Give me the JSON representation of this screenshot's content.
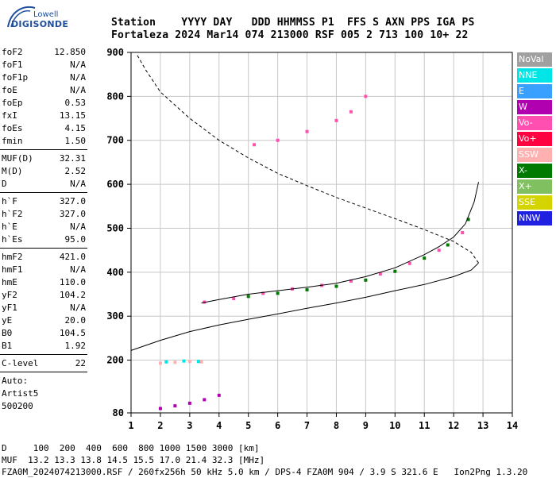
{
  "logo": {
    "maker": "Lowell",
    "brand": "DIGISONDE"
  },
  "header": {
    "line1": "Station    YYYY DAY   DDD HHMMSS P1  FFS S AXN PPS IGA PS",
    "line2": "Fortaleza 2024 Mar14 074 213000 RSF 005 2 713 100 10+ 22"
  },
  "parameters": [
    {
      "group": [
        {
          "name": "foF2",
          "value": "12.850"
        },
        {
          "name": "foF1",
          "value": "N/A"
        },
        {
          "name": "foF1p",
          "value": "N/A"
        },
        {
          "name": "foE",
          "value": "N/A"
        },
        {
          "name": "foEp",
          "value": "0.53"
        },
        {
          "name": "fxI",
          "value": "13.15"
        },
        {
          "name": "foEs",
          "value": "4.15"
        },
        {
          "name": "fmin",
          "value": "1.50"
        }
      ]
    },
    {
      "group": [
        {
          "name": "MUF(D)",
          "value": "32.31"
        },
        {
          "name": "M(D)",
          "value": "2.52"
        },
        {
          "name": "D",
          "value": "N/A"
        }
      ]
    },
    {
      "group": [
        {
          "name": "h`F",
          "value": "327.0"
        },
        {
          "name": "h`F2",
          "value": "327.0"
        },
        {
          "name": "h`E",
          "value": "N/A"
        },
        {
          "name": "h`Es",
          "value": "95.0"
        }
      ]
    },
    {
      "group": [
        {
          "name": "hmF2",
          "value": "421.0"
        },
        {
          "name": "hmF1",
          "value": "N/A"
        },
        {
          "name": "hmE",
          "value": "110.0"
        },
        {
          "name": "yF2",
          "value": "104.2"
        },
        {
          "name": "yF1",
          "value": "N/A"
        },
        {
          "name": "yE",
          "value": "20.0"
        },
        {
          "name": "B0",
          "value": "104.5"
        },
        {
          "name": "B1",
          "value": "1.92"
        }
      ]
    },
    {
      "group": [
        {
          "name": "C-level",
          "value": "22"
        }
      ]
    }
  ],
  "autoscale": {
    "line1": "Auto:",
    "line2": "Artist5",
    "line3": "500200"
  },
  "legend": [
    {
      "label": "NoVal",
      "color": "#a0a0a0"
    },
    {
      "label": "NNE",
      "color": "#00e5e5"
    },
    {
      "label": "E",
      "color": "#3aa0ff"
    },
    {
      "label": "W",
      "color": "#b000b0"
    },
    {
      "label": "Vo-",
      "color": "#ff4fb0"
    },
    {
      "label": "Vo+",
      "color": "#ff0040"
    },
    {
      "label": "SSW",
      "color": "#ffb0b0"
    },
    {
      "label": "X-",
      "color": "#007a00"
    },
    {
      "label": "X+",
      "color": "#80c060"
    },
    {
      "label": "SSE",
      "color": "#d4d400"
    },
    {
      "label": "NNW",
      "color": "#2020e0"
    }
  ],
  "footer": {
    "line1": "D     100  200  400  600  800 1000 1500 3000 [km]",
    "line2": "MUF  13.2 13.3 13.8 14.5 15.5 17.0 21.4 32.3 [MHz]",
    "line3": "FZA0M_2024074213000.RSF / 260fx256h 50 kHz 5.0 km / DPS-4 FZA0M 904 / 3.9 S 321.6 E   Ion2Png 1.3.20"
  },
  "chart_data": {
    "type": "scatter",
    "xlim": [
      1,
      14
    ],
    "ylim": [
      80,
      900
    ],
    "x_ticks": [
      "1",
      "2",
      "3",
      "4",
      "5",
      "6",
      "7",
      "8",
      "9",
      "10",
      "11",
      "12",
      "13",
      "14"
    ],
    "y_ticks": [
      "80",
      "200",
      "300",
      "400",
      "500",
      "600",
      "700",
      "800",
      "900"
    ],
    "grid": true,
    "electron_density_profile": {
      "x": [
        1.0,
        2.0,
        3.0,
        4.0,
        5.0,
        6.0,
        7.0,
        8.0,
        9.0,
        10.0,
        11.0,
        12.0,
        12.6,
        12.85
      ],
      "y": [
        222,
        245,
        265,
        280,
        293,
        305,
        318,
        330,
        343,
        358,
        372,
        390,
        405,
        421
      ]
    },
    "topside_profile": {
      "x": [
        12.85,
        12.6,
        12.0,
        11.0,
        10.0,
        9.0,
        8.0,
        7.0,
        6.0,
        5.0,
        4.0,
        3.0,
        2.0,
        1.5,
        1.2
      ],
      "y": [
        421,
        445,
        470,
        497,
        522,
        546,
        570,
        597,
        625,
        660,
        700,
        750,
        810,
        860,
        895
      ]
    },
    "virtual_height_trace": {
      "x": [
        3.4,
        4.0,
        5.0,
        6.0,
        7.0,
        8.0,
        9.0,
        10.0,
        11.0,
        11.5,
        12.0,
        12.4,
        12.7,
        12.85
      ],
      "y": [
        330,
        338,
        350,
        358,
        366,
        375,
        390,
        410,
        440,
        458,
        480,
        510,
        560,
        605
      ]
    },
    "echo_groups": [
      {
        "mode": "Vo-",
        "color": "#ff4fb0",
        "x": [
          3.5,
          4.5,
          5.5,
          6.5,
          7.5,
          8.5,
          9.5,
          10.5,
          11.5,
          12.3
        ],
        "y": [
          332,
          340,
          352,
          362,
          370,
          380,
          396,
          420,
          450,
          490
        ]
      },
      {
        "mode": "X-",
        "color": "#007a00",
        "x": [
          5.0,
          6.0,
          7.0,
          8.0,
          9.0,
          10.0,
          11.0,
          11.8,
          12.5
        ],
        "y": [
          345,
          352,
          360,
          368,
          382,
          402,
          432,
          462,
          520
        ]
      },
      {
        "mode": "W",
        "color": "#b000b0",
        "x": [
          2.0,
          2.5,
          3.0,
          3.5,
          4.0
        ],
        "y": [
          90,
          96,
          102,
          110,
          120
        ]
      },
      {
        "mode": "Vo-",
        "color": "#ff4fb0",
        "x": [
          5.2,
          6.0,
          7.0,
          8.0,
          8.5,
          9.0
        ],
        "y": [
          690,
          700,
          720,
          745,
          765,
          800
        ]
      },
      {
        "mode": "SSW",
        "color": "#ffb0b0",
        "x": [
          2.0,
          2.5,
          3.0,
          3.4
        ],
        "y": [
          193,
          195,
          197,
          196
        ]
      },
      {
        "mode": "NNE",
        "color": "#00e5e5",
        "x": [
          2.2,
          2.8,
          3.3
        ],
        "y": [
          196,
          198,
          197
        ]
      }
    ]
  }
}
